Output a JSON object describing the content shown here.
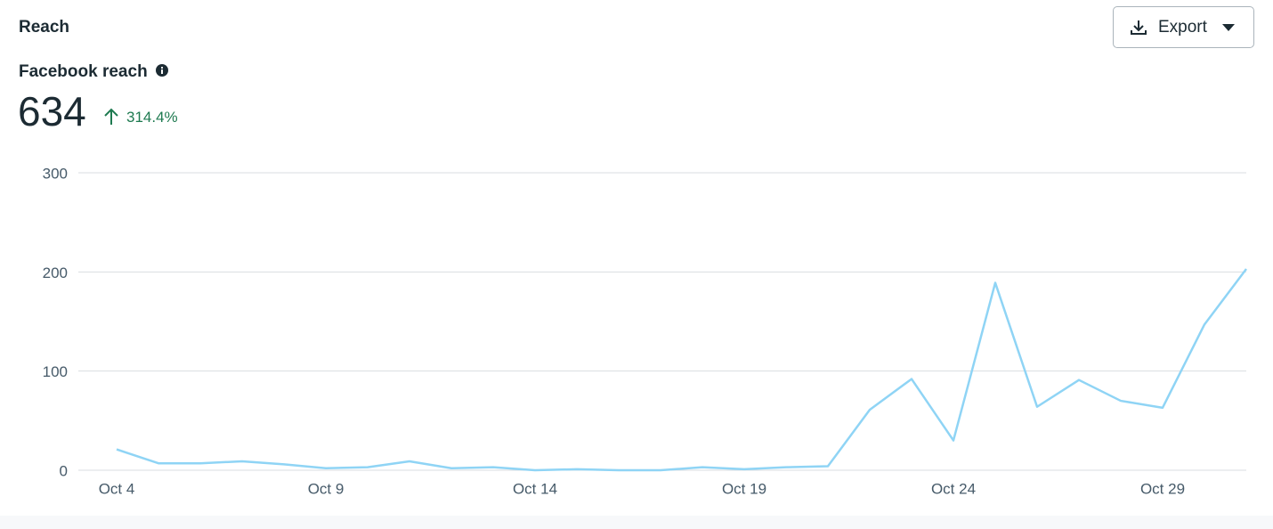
{
  "header": {
    "title": "Reach",
    "button": "Export"
  },
  "metric": {
    "label": "Facebook reach",
    "value": 634,
    "change": "314.4%"
  },
  "chart_data": {
    "type": "line",
    "categories": [
      "Oct 4",
      null,
      null,
      null,
      null,
      "Oct 9",
      null,
      null,
      null,
      null,
      "Oct 14",
      null,
      null,
      null,
      null,
      "Oct 19",
      null,
      null,
      null,
      null,
      "Oct 24",
      null,
      null,
      null,
      null,
      "Oct 29",
      null,
      null
    ],
    "values": [
      21,
      7,
      7,
      9,
      6,
      2,
      3,
      9,
      2,
      3,
      0,
      1,
      0,
      0,
      3,
      1,
      3,
      4,
      61,
      92,
      30,
      189,
      64,
      91,
      70,
      63,
      147,
      203
    ],
    "color": "#8fd4f5",
    "ylim": [
      0,
      300
    ],
    "yticks": [
      0,
      100,
      200,
      300
    ],
    "grid": true
  }
}
